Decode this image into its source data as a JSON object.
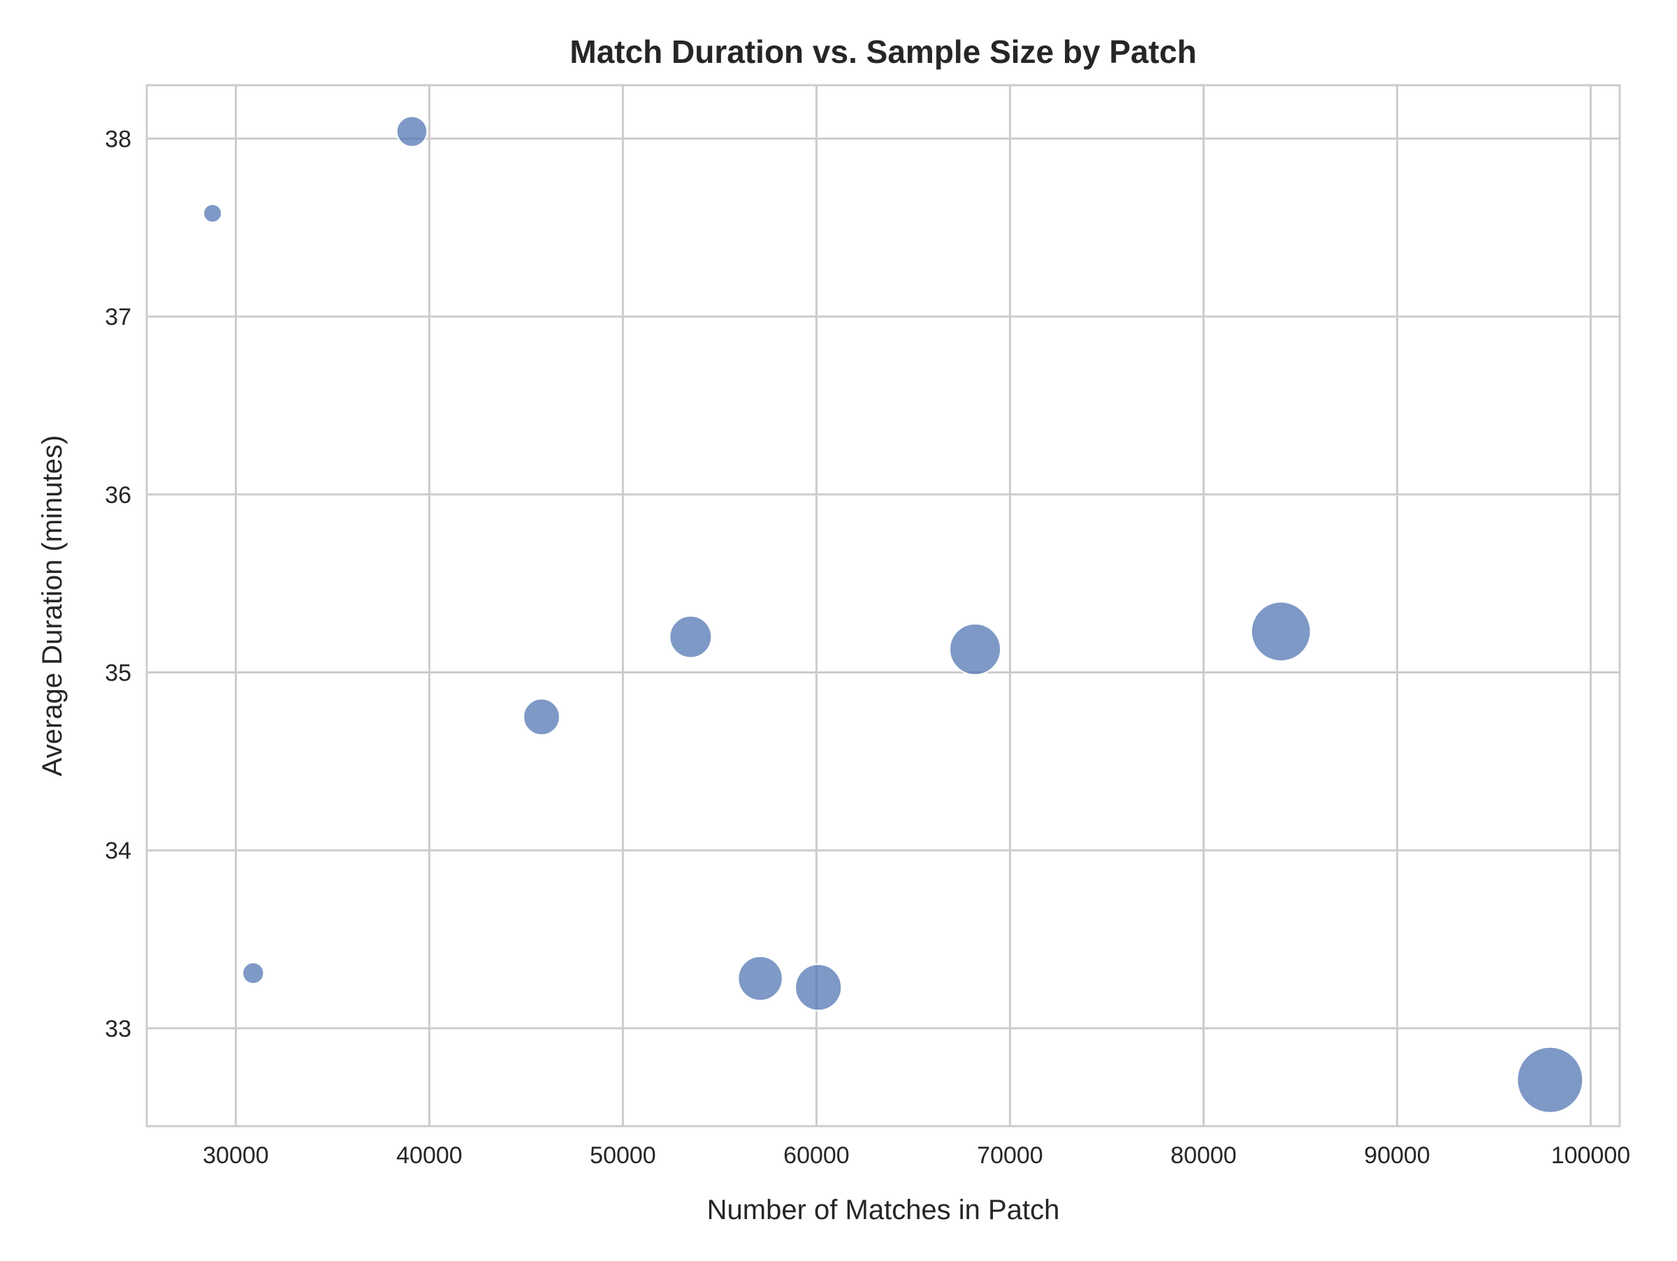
{
  "chart_data": {
    "type": "scatter",
    "title": "Match Duration vs. Sample Size by Patch",
    "xlabel": "Number of Matches in Patch",
    "ylabel": "Average Duration (minutes)",
    "xlim": [
      25400,
      101500
    ],
    "ylim": [
      32.45,
      38.3
    ],
    "xticks": [
      30000,
      40000,
      50000,
      60000,
      70000,
      80000,
      90000,
      100000
    ],
    "yticks": [
      33,
      34,
      35,
      36,
      37,
      38
    ],
    "grid": true,
    "legend": "none",
    "point_size_encodes": "Number of Matches in Patch",
    "colors": {
      "point": "#4c72b0",
      "grid": "#cccccc",
      "spine": "#cccccc",
      "text": "#262626"
    },
    "points": [
      {
        "x": 28800,
        "y": 37.58
      },
      {
        "x": 30900,
        "y": 33.31
      },
      {
        "x": 39100,
        "y": 38.04
      },
      {
        "x": 45800,
        "y": 34.75
      },
      {
        "x": 53500,
        "y": 35.2
      },
      {
        "x": 57100,
        "y": 33.28
      },
      {
        "x": 60100,
        "y": 33.23
      },
      {
        "x": 68200,
        "y": 35.13
      },
      {
        "x": 84000,
        "y": 35.23
      },
      {
        "x": 97900,
        "y": 32.71
      }
    ]
  }
}
